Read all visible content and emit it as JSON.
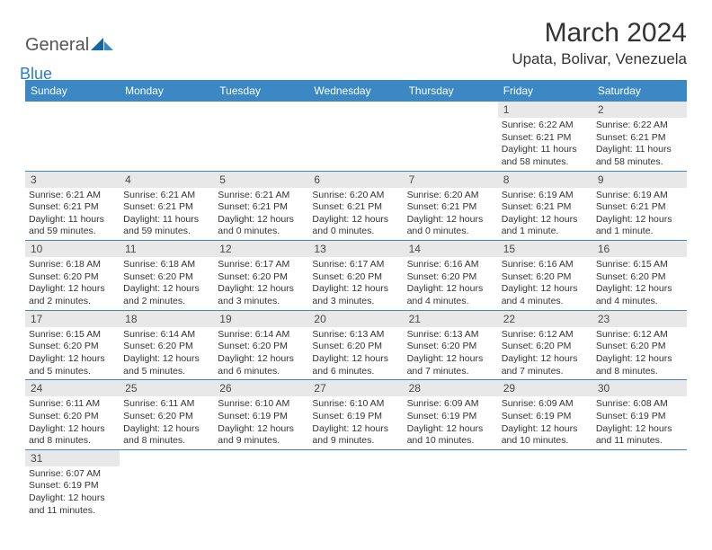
{
  "brand": {
    "part1": "General",
    "part2": "Blue"
  },
  "title": "March 2024",
  "subtitle": "Upata, Bolivar, Venezuela",
  "theme": {
    "header_bg": "#3b88c4",
    "header_fg": "#ffffff",
    "daynum_bg": "#e8e8e8",
    "border": "#3b88c4"
  },
  "daysOfWeek": [
    "Sunday",
    "Monday",
    "Tuesday",
    "Wednesday",
    "Thursday",
    "Friday",
    "Saturday"
  ],
  "weeks": [
    [
      null,
      null,
      null,
      null,
      null,
      {
        "n": "1",
        "sr": "Sunrise: 6:22 AM",
        "ss": "Sunset: 6:21 PM",
        "dl": "Daylight: 11 hours and 58 minutes."
      },
      {
        "n": "2",
        "sr": "Sunrise: 6:22 AM",
        "ss": "Sunset: 6:21 PM",
        "dl": "Daylight: 11 hours and 58 minutes."
      }
    ],
    [
      {
        "n": "3",
        "sr": "Sunrise: 6:21 AM",
        "ss": "Sunset: 6:21 PM",
        "dl": "Daylight: 11 hours and 59 minutes."
      },
      {
        "n": "4",
        "sr": "Sunrise: 6:21 AM",
        "ss": "Sunset: 6:21 PM",
        "dl": "Daylight: 11 hours and 59 minutes."
      },
      {
        "n": "5",
        "sr": "Sunrise: 6:21 AM",
        "ss": "Sunset: 6:21 PM",
        "dl": "Daylight: 12 hours and 0 minutes."
      },
      {
        "n": "6",
        "sr": "Sunrise: 6:20 AM",
        "ss": "Sunset: 6:21 PM",
        "dl": "Daylight: 12 hours and 0 minutes."
      },
      {
        "n": "7",
        "sr": "Sunrise: 6:20 AM",
        "ss": "Sunset: 6:21 PM",
        "dl": "Daylight: 12 hours and 0 minutes."
      },
      {
        "n": "8",
        "sr": "Sunrise: 6:19 AM",
        "ss": "Sunset: 6:21 PM",
        "dl": "Daylight: 12 hours and 1 minute."
      },
      {
        "n": "9",
        "sr": "Sunrise: 6:19 AM",
        "ss": "Sunset: 6:21 PM",
        "dl": "Daylight: 12 hours and 1 minute."
      }
    ],
    [
      {
        "n": "10",
        "sr": "Sunrise: 6:18 AM",
        "ss": "Sunset: 6:20 PM",
        "dl": "Daylight: 12 hours and 2 minutes."
      },
      {
        "n": "11",
        "sr": "Sunrise: 6:18 AM",
        "ss": "Sunset: 6:20 PM",
        "dl": "Daylight: 12 hours and 2 minutes."
      },
      {
        "n": "12",
        "sr": "Sunrise: 6:17 AM",
        "ss": "Sunset: 6:20 PM",
        "dl": "Daylight: 12 hours and 3 minutes."
      },
      {
        "n": "13",
        "sr": "Sunrise: 6:17 AM",
        "ss": "Sunset: 6:20 PM",
        "dl": "Daylight: 12 hours and 3 minutes."
      },
      {
        "n": "14",
        "sr": "Sunrise: 6:16 AM",
        "ss": "Sunset: 6:20 PM",
        "dl": "Daylight: 12 hours and 4 minutes."
      },
      {
        "n": "15",
        "sr": "Sunrise: 6:16 AM",
        "ss": "Sunset: 6:20 PM",
        "dl": "Daylight: 12 hours and 4 minutes."
      },
      {
        "n": "16",
        "sr": "Sunrise: 6:15 AM",
        "ss": "Sunset: 6:20 PM",
        "dl": "Daylight: 12 hours and 4 minutes."
      }
    ],
    [
      {
        "n": "17",
        "sr": "Sunrise: 6:15 AM",
        "ss": "Sunset: 6:20 PM",
        "dl": "Daylight: 12 hours and 5 minutes."
      },
      {
        "n": "18",
        "sr": "Sunrise: 6:14 AM",
        "ss": "Sunset: 6:20 PM",
        "dl": "Daylight: 12 hours and 5 minutes."
      },
      {
        "n": "19",
        "sr": "Sunrise: 6:14 AM",
        "ss": "Sunset: 6:20 PM",
        "dl": "Daylight: 12 hours and 6 minutes."
      },
      {
        "n": "20",
        "sr": "Sunrise: 6:13 AM",
        "ss": "Sunset: 6:20 PM",
        "dl": "Daylight: 12 hours and 6 minutes."
      },
      {
        "n": "21",
        "sr": "Sunrise: 6:13 AM",
        "ss": "Sunset: 6:20 PM",
        "dl": "Daylight: 12 hours and 7 minutes."
      },
      {
        "n": "22",
        "sr": "Sunrise: 6:12 AM",
        "ss": "Sunset: 6:20 PM",
        "dl": "Daylight: 12 hours and 7 minutes."
      },
      {
        "n": "23",
        "sr": "Sunrise: 6:12 AM",
        "ss": "Sunset: 6:20 PM",
        "dl": "Daylight: 12 hours and 8 minutes."
      }
    ],
    [
      {
        "n": "24",
        "sr": "Sunrise: 6:11 AM",
        "ss": "Sunset: 6:20 PM",
        "dl": "Daylight: 12 hours and 8 minutes."
      },
      {
        "n": "25",
        "sr": "Sunrise: 6:11 AM",
        "ss": "Sunset: 6:20 PM",
        "dl": "Daylight: 12 hours and 8 minutes."
      },
      {
        "n": "26",
        "sr": "Sunrise: 6:10 AM",
        "ss": "Sunset: 6:19 PM",
        "dl": "Daylight: 12 hours and 9 minutes."
      },
      {
        "n": "27",
        "sr": "Sunrise: 6:10 AM",
        "ss": "Sunset: 6:19 PM",
        "dl": "Daylight: 12 hours and 9 minutes."
      },
      {
        "n": "28",
        "sr": "Sunrise: 6:09 AM",
        "ss": "Sunset: 6:19 PM",
        "dl": "Daylight: 12 hours and 10 minutes."
      },
      {
        "n": "29",
        "sr": "Sunrise: 6:09 AM",
        "ss": "Sunset: 6:19 PM",
        "dl": "Daylight: 12 hours and 10 minutes."
      },
      {
        "n": "30",
        "sr": "Sunrise: 6:08 AM",
        "ss": "Sunset: 6:19 PM",
        "dl": "Daylight: 12 hours and 11 minutes."
      }
    ],
    [
      {
        "n": "31",
        "sr": "Sunrise: 6:07 AM",
        "ss": "Sunset: 6:19 PM",
        "dl": "Daylight: 12 hours and 11 minutes."
      },
      null,
      null,
      null,
      null,
      null,
      null
    ]
  ]
}
